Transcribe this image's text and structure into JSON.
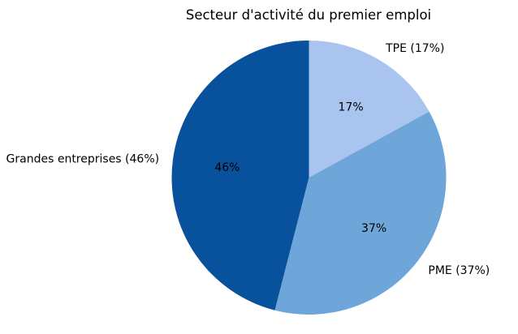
{
  "chart_data": {
    "type": "pie",
    "title": "Secteur d'activité du premier emploi",
    "start_angle_deg": 90,
    "direction": "clockwise",
    "legend_position": "none",
    "background_color": "#ffffff",
    "text_color": "#000000",
    "slices": [
      {
        "id": "tpe",
        "label": "TPE",
        "value": 17,
        "pct_label": "17%",
        "outer_label": "TPE (17%)",
        "color": "#a9c5ef"
      },
      {
        "id": "pme",
        "label": "PME",
        "value": 37,
        "pct_label": "37%",
        "outer_label": "PME (37%)",
        "color": "#6ea6d9"
      },
      {
        "id": "grandes-entreprises",
        "label": "Grandes entreprises",
        "value": 46,
        "pct_label": "46%",
        "outer_label": "Grandes entreprises (46%)",
        "color": "#08519c"
      }
    ]
  }
}
